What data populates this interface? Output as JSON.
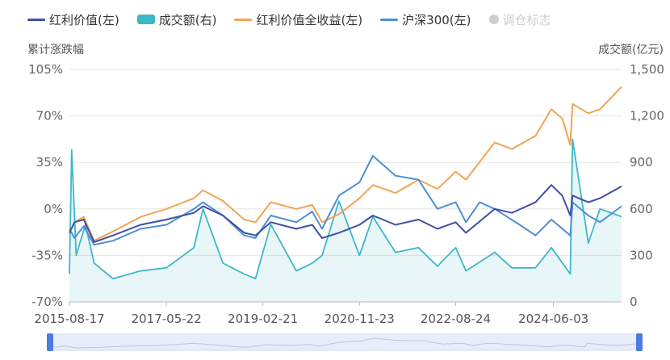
{
  "legend": [
    {
      "key": "dividend",
      "label": "红利价值(左)",
      "color": "#3f4fa6",
      "marker": "line"
    },
    {
      "key": "volume",
      "label": "成交额(右)",
      "color": "#3eb7c8",
      "marker": "rect"
    },
    {
      "key": "total_return",
      "label": "红利价值全收益(左)",
      "color": "#f0a556",
      "marker": "line"
    },
    {
      "key": "csi300",
      "label": "沪深300(左)",
      "color": "#4d8fd6",
      "marker": "line"
    },
    {
      "key": "rebalance",
      "label": "调仓标志",
      "color": "#cfcfcf",
      "marker": "dot"
    }
  ],
  "axis": {
    "left_title": "累计涨跌幅",
    "right_title": "成交额(亿元)"
  },
  "chart_data": {
    "type": "line",
    "x_ticks": [
      "2015-08-17",
      "2017-05-22",
      "2019-02-21",
      "2020-11-23",
      "2022-08-24",
      "2024-06-03"
    ],
    "x_range": [
      "2015-08-17",
      "2025-08-29"
    ],
    "y_left": {
      "label": "累计涨跌幅",
      "ticks": [
        "105%",
        "70%",
        "35%",
        "0%",
        "-35%",
        "-70%"
      ],
      "range": [
        -70,
        105
      ]
    },
    "y_right": {
      "label": "成交额(亿元)",
      "ticks": [
        "1,500",
        "1,200",
        "900",
        "600",
        "300",
        "0"
      ],
      "range": [
        0,
        1500
      ]
    },
    "grid": true,
    "legend_position": "top",
    "series": [
      {
        "name": "红利价值(左)",
        "axis": "left",
        "points": [
          [
            "2015-08-17",
            -18
          ],
          [
            "2015-09-20",
            -10
          ],
          [
            "2015-11-20",
            -8
          ],
          [
            "2016-01-28",
            -25
          ],
          [
            "2016-06-01",
            -20
          ],
          [
            "2016-12-01",
            -12
          ],
          [
            "2017-05-22",
            -8
          ],
          [
            "2017-11-20",
            -3
          ],
          [
            "2018-01-20",
            2
          ],
          [
            "2018-06-01",
            -5
          ],
          [
            "2018-10-20",
            -18
          ],
          [
            "2019-01-03",
            -20
          ],
          [
            "2019-04-15",
            -10
          ],
          [
            "2019-10-01",
            -15
          ],
          [
            "2020-01-15",
            -12
          ],
          [
            "2020-03-20",
            -22
          ],
          [
            "2020-07-10",
            -18
          ],
          [
            "2020-11-23",
            -12
          ],
          [
            "2021-02-20",
            -5
          ],
          [
            "2021-07-20",
            -12
          ],
          [
            "2021-12-20",
            -8
          ],
          [
            "2022-04-25",
            -15
          ],
          [
            "2022-08-24",
            -10
          ],
          [
            "2022-10-31",
            -18
          ],
          [
            "2023-05-10",
            0
          ],
          [
            "2023-09-01",
            -3
          ],
          [
            "2024-02-05",
            5
          ],
          [
            "2024-05-20",
            18
          ],
          [
            "2024-07-31",
            10
          ],
          [
            "2024-09-23",
            -5
          ],
          [
            "2024-10-08",
            10
          ],
          [
            "2025-01-20",
            5
          ],
          [
            "2025-04-08",
            8
          ],
          [
            "2025-08-29",
            17
          ]
        ]
      },
      {
        "name": "红利价值全收益(左)",
        "axis": "left",
        "points": [
          [
            "2015-08-17",
            -18
          ],
          [
            "2015-09-20",
            -10
          ],
          [
            "2015-11-20",
            -6
          ],
          [
            "2016-01-28",
            -24
          ],
          [
            "2016-06-01",
            -17
          ],
          [
            "2016-12-01",
            -6
          ],
          [
            "2017-05-22",
            0
          ],
          [
            "2017-11-20",
            8
          ],
          [
            "2018-01-20",
            14
          ],
          [
            "2018-06-01",
            6
          ],
          [
            "2018-10-20",
            -8
          ],
          [
            "2019-01-03",
            -10
          ],
          [
            "2019-04-15",
            5
          ],
          [
            "2019-10-01",
            0
          ],
          [
            "2020-01-15",
            3
          ],
          [
            "2020-03-20",
            -10
          ],
          [
            "2020-07-10",
            -4
          ],
          [
            "2020-11-23",
            8
          ],
          [
            "2021-02-20",
            18
          ],
          [
            "2021-07-20",
            12
          ],
          [
            "2021-12-20",
            22
          ],
          [
            "2022-04-25",
            15
          ],
          [
            "2022-08-24",
            28
          ],
          [
            "2022-10-31",
            22
          ],
          [
            "2023-05-10",
            50
          ],
          [
            "2023-09-01",
            45
          ],
          [
            "2024-02-05",
            55
          ],
          [
            "2024-05-20",
            75
          ],
          [
            "2024-07-31",
            68
          ],
          [
            "2024-09-23",
            48
          ],
          [
            "2024-10-08",
            79
          ],
          [
            "2025-01-20",
            72
          ],
          [
            "2025-04-08",
            75
          ],
          [
            "2025-08-29",
            92
          ]
        ]
      },
      {
        "name": "沪深300(左)",
        "axis": "left",
        "points": [
          [
            "2015-08-17",
            -15
          ],
          [
            "2015-09-20",
            -22
          ],
          [
            "2015-11-20",
            -13
          ],
          [
            "2016-01-28",
            -27
          ],
          [
            "2016-06-01",
            -24
          ],
          [
            "2016-12-01",
            -15
          ],
          [
            "2017-05-22",
            -12
          ],
          [
            "2017-11-20",
            0
          ],
          [
            "2018-01-20",
            5
          ],
          [
            "2018-06-01",
            -5
          ],
          [
            "2018-10-20",
            -20
          ],
          [
            "2019-01-03",
            -22
          ],
          [
            "2019-04-15",
            -5
          ],
          [
            "2019-10-01",
            -10
          ],
          [
            "2020-01-15",
            -2
          ],
          [
            "2020-03-20",
            -15
          ],
          [
            "2020-07-10",
            10
          ],
          [
            "2020-11-23",
            20
          ],
          [
            "2021-02-20",
            40
          ],
          [
            "2021-07-20",
            25
          ],
          [
            "2021-12-20",
            22
          ],
          [
            "2022-04-25",
            0
          ],
          [
            "2022-08-24",
            5
          ],
          [
            "2022-10-31",
            -10
          ],
          [
            "2023-01-30",
            5
          ],
          [
            "2023-05-10",
            0
          ],
          [
            "2023-10-23",
            -12
          ],
          [
            "2024-02-05",
            -20
          ],
          [
            "2024-05-20",
            -8
          ],
          [
            "2024-09-23",
            -20
          ],
          [
            "2024-10-08",
            5
          ],
          [
            "2025-01-20",
            -5
          ],
          [
            "2025-04-08",
            -10
          ],
          [
            "2025-08-29",
            2
          ]
        ]
      },
      {
        "name": "成交额(右)",
        "axis": "right",
        "style": "area",
        "points": [
          [
            "2015-08-17",
            180
          ],
          [
            "2015-09-01",
            980
          ],
          [
            "2015-10-01",
            300
          ],
          [
            "2015-12-01",
            500
          ],
          [
            "2016-01-28",
            250
          ],
          [
            "2016-06-01",
            150
          ],
          [
            "2016-12-01",
            200
          ],
          [
            "2017-05-22",
            220
          ],
          [
            "2017-11-20",
            350
          ],
          [
            "2018-01-20",
            600
          ],
          [
            "2018-06-01",
            250
          ],
          [
            "2018-10-20",
            180
          ],
          [
            "2019-01-03",
            150
          ],
          [
            "2019-04-15",
            500
          ],
          [
            "2019-10-01",
            200
          ],
          [
            "2020-01-15",
            250
          ],
          [
            "2020-03-20",
            300
          ],
          [
            "2020-07-10",
            650
          ],
          [
            "2020-11-23",
            300
          ],
          [
            "2021-02-20",
            550
          ],
          [
            "2021-07-20",
            320
          ],
          [
            "2021-12-20",
            350
          ],
          [
            "2022-04-25",
            230
          ],
          [
            "2022-08-24",
            350
          ],
          [
            "2022-10-31",
            200
          ],
          [
            "2023-05-10",
            320
          ],
          [
            "2023-09-01",
            220
          ],
          [
            "2024-02-05",
            220
          ],
          [
            "2024-05-20",
            350
          ],
          [
            "2024-09-23",
            180
          ],
          [
            "2024-10-08",
            1050
          ],
          [
            "2025-01-20",
            380
          ],
          [
            "2025-04-08",
            600
          ],
          [
            "2025-08-29",
            550
          ]
        ]
      }
    ],
    "datazoom": {
      "start": "2015-08-17",
      "end": "2025-08-29"
    }
  }
}
